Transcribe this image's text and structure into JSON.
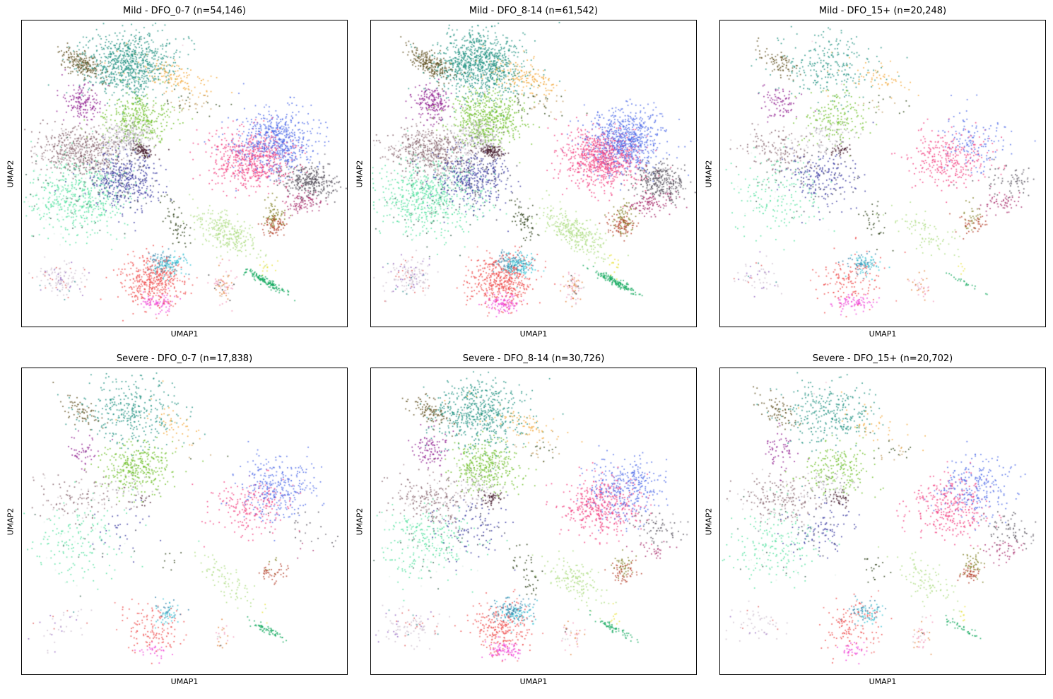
{
  "figure": {
    "background": "#ffffff",
    "rows": 2,
    "cols": 3
  },
  "chart_data": {
    "type": "scatter",
    "description": "Six UMAP embedding panels of single cells, split by disease severity (Mild, Severe) and days-from-onset bins (DFO_0-7, DFO_8-14, DFO_15+). Points are colored by cell cluster; no axis ticks are shown.",
    "axes": {
      "xlabel": "UMAP1",
      "ylabel": "UMAP2",
      "ticks": false,
      "grid": false
    },
    "points_per_dot": 8,
    "dot_size": 1.7,
    "dot_alpha": 0.85,
    "panels": [
      {
        "title": "Mild - DFO_0-7 (n=54,146)",
        "group": "Mild",
        "dfo": "DFO_0-7",
        "n": 54146,
        "seed": 11,
        "weight_multipliers": {
          "slate": 1.25,
          "silver": 1.25,
          "navy": 1.1,
          "rosybrown": 1.15,
          "yellow_green": 0.75
        }
      },
      {
        "title": "Mild - DFO_8-14 (n=61,542)",
        "group": "Mild",
        "dfo": "DFO_8-14",
        "n": 61542,
        "seed": 22,
        "weight_multipliers": {
          "yellow_green": 1.1,
          "blue": 1.1,
          "pink": 1.05,
          "teal": 1.05
        }
      },
      {
        "title": "Mild - DFO_15+ (n=20,248)",
        "group": "Mild",
        "dfo": "DFO_15+",
        "n": 20248,
        "seed": 33,
        "weight_multipliers": {
          "red": 0.8,
          "magenta": 2.0,
          "cyan": 1.6,
          "steel_teal": 1.5,
          "pink": 1.35,
          "blue": 0.55,
          "navy": 1.35,
          "slate": 0.65,
          "teal": 0.85,
          "spring_green": 0.85,
          "silver": 1.3,
          "rosybrown": 0.95,
          "mulberry": 1.5,
          "brick_red": 1.1,
          "light_green": 0.8,
          "green_streak": 0.5,
          "dark_green_trail": 1.8,
          "thistle": 1.2,
          "dark_maroon": 1.2,
          "purple": 1.1
        }
      },
      {
        "title": "Severe - DFO_0-7 (n=17,838)",
        "group": "Severe",
        "dfo": "DFO_0-7",
        "n": 17838,
        "seed": 44,
        "weight_multipliers": {
          "yellow_green": 1.9,
          "teal": 1.25,
          "blue": 1.5,
          "pink": 0.85,
          "rosybrown": 0.85,
          "slate": 0.2,
          "spring_green": 0.85,
          "navy": 0.25,
          "silver": 0.5,
          "dark_maroon": 0.25,
          "mulberry": 0.3,
          "olive_small": 0.3,
          "brick_red": 1.4,
          "magenta": 0.9,
          "cyan": 1.3,
          "steel_teal": 0.8,
          "green_streak": 1.3,
          "dark_green_trail": 0.4,
          "tan_specks": 0.5,
          "yellow_specks": 0.5,
          "thistle": 1.1,
          "red": 1.05,
          "purple": 0.9
        }
      },
      {
        "title": "Severe - DFO_8-14 (n=30,726)",
        "group": "Severe",
        "dfo": "DFO_8-14",
        "n": 30726,
        "seed": 55,
        "weight_multipliers": {
          "yellow_green": 1.5,
          "teal": 1.25,
          "pink": 1.25,
          "blue": 0.95,
          "steel_teal": 2.2,
          "cyan": 1.6,
          "magenta": 1.6,
          "red": 1.15,
          "slate": 0.45,
          "navy": 0.55,
          "silver": 0.8,
          "dark_green_trail": 1.6,
          "thistle": 1.4,
          "rosybrown": 0.9,
          "mulberry": 0.8,
          "spring_green": 0.95,
          "dark_maroon": 0.8
        }
      },
      {
        "title": "Severe - DFO_15+ (n=20,702)",
        "group": "Severe",
        "dfo": "DFO_15+",
        "n": 20702,
        "seed": 66,
        "weight_multipliers": {
          "pink": 1.35,
          "blue": 1.05,
          "yellow_green": 1.25,
          "teal": 1.1,
          "navy": 0.85,
          "slate": 0.7,
          "olive_small": 1.6,
          "green_streak": 0.9,
          "steel_teal": 1.8,
          "cyan": 1.3,
          "magenta": 1.2,
          "brick_red": 1.2,
          "peach": 1.3,
          "thistle": 1.1
        }
      }
    ],
    "clusters": [
      {
        "id": "olive_brown",
        "color": "#5f4f1e",
        "cx": 0.18,
        "cy": 0.138,
        "sx": 0.04,
        "sy": 0.018,
        "rot": 35,
        "weight": 0.032
      },
      {
        "id": "teal",
        "color": "#1f9080",
        "cx": 0.332,
        "cy": 0.142,
        "sx": 0.07,
        "sy": 0.055,
        "rot": 0,
        "weight": 0.125,
        "mix": [
          {
            "color": "#f3a83b",
            "frac": 0.012
          },
          {
            "color": "#efc3d2",
            "frac": 0.01
          }
        ]
      },
      {
        "id": "orange",
        "color": "#f3a83b",
        "cx": 0.476,
        "cy": 0.187,
        "sx": 0.055,
        "sy": 0.022,
        "rot": 20,
        "weight": 0.02
      },
      {
        "id": "tan_specks",
        "color": "#c09a5e",
        "cx": 0.52,
        "cy": 0.271,
        "sx": 0.045,
        "sy": 0.02,
        "rot": 10,
        "weight": 0.007,
        "mix": [
          {
            "color": "#2c4414",
            "frac": 0.5
          }
        ]
      },
      {
        "id": "purple",
        "color": "#8d1a8d",
        "cx": 0.184,
        "cy": 0.264,
        "sx": 0.028,
        "sy": 0.03,
        "rot": 0,
        "weight": 0.026
      },
      {
        "id": "yellow_green",
        "color": "#6cbe26",
        "cx": 0.354,
        "cy": 0.321,
        "sx": 0.052,
        "sy": 0.042,
        "rot": 0,
        "weight": 0.072
      },
      {
        "id": "silver",
        "color": "#b9b2bd",
        "cx": 0.325,
        "cy": 0.382,
        "sx": 0.038,
        "sy": 0.03,
        "rot": 0,
        "weight": 0.028,
        "mix": [
          {
            "color": "#6a6470",
            "frac": 0.1
          }
        ]
      },
      {
        "id": "rosybrown",
        "color": "#7e5a64",
        "cx": 0.18,
        "cy": 0.424,
        "sx": 0.065,
        "sy": 0.038,
        "rot": 5,
        "weight": 0.07,
        "mix": [
          {
            "color": "#a88b92",
            "frac": 0.25
          },
          {
            "color": "#c9c2c6",
            "frac": 0.1
          }
        ]
      },
      {
        "id": "dark_maroon",
        "color": "#3c1022",
        "cx": 0.368,
        "cy": 0.424,
        "sx": 0.02,
        "sy": 0.012,
        "rot": 15,
        "weight": 0.016
      },
      {
        "id": "spring_green",
        "color": "#50e09e",
        "cx": 0.17,
        "cy": 0.57,
        "sx": 0.078,
        "sy": 0.062,
        "rot": 0,
        "weight": 0.1,
        "mix": [
          {
            "color": "#dfeee6",
            "frac": 0.12
          },
          {
            "color": "#2e5a46",
            "frac": 0.06
          }
        ]
      },
      {
        "id": "navy",
        "color": "#32329e",
        "cx": 0.31,
        "cy": 0.516,
        "sx": 0.058,
        "sy": 0.048,
        "rot": 0,
        "weight": 0.062,
        "mix": [
          {
            "color": "#3c3c58",
            "frac": 0.15
          }
        ]
      },
      {
        "id": "dark_green_trail",
        "color": "#24380f",
        "cx": 0.473,
        "cy": 0.661,
        "sx": 0.018,
        "sy": 0.04,
        "rot": -20,
        "weight": 0.008
      },
      {
        "id": "light_green",
        "color": "#abdc80",
        "cx": 0.628,
        "cy": 0.692,
        "sx": 0.055,
        "sy": 0.026,
        "rot": 40,
        "weight": 0.04
      },
      {
        "id": "green_streak",
        "color": "#0fa85c",
        "cx": 0.75,
        "cy": 0.852,
        "sx": 0.038,
        "sy": 0.006,
        "rot": 30,
        "weight": 0.02
      },
      {
        "id": "yellow_specks",
        "color": "#e8e23a",
        "cx": 0.747,
        "cy": 0.806,
        "sx": 0.01,
        "sy": 0.018,
        "rot": 0,
        "weight": 0.0025
      },
      {
        "id": "blue",
        "color": "#4b68e8",
        "cx": 0.779,
        "cy": 0.39,
        "sx": 0.058,
        "sy": 0.05,
        "rot": 0,
        "weight": 0.098
      },
      {
        "id": "pink",
        "color": "#f23f80",
        "cx": 0.703,
        "cy": 0.451,
        "sx": 0.06,
        "sy": 0.048,
        "rot": 0,
        "weight": 0.098
      },
      {
        "id": "slate",
        "color": "#4c4752",
        "cx": 0.887,
        "cy": 0.524,
        "sx": 0.045,
        "sy": 0.027,
        "rot": 15,
        "weight": 0.042,
        "mix": [
          {
            "color": "#7a7580",
            "frac": 0.2
          }
        ]
      },
      {
        "id": "mulberry",
        "color": "#a62868",
        "cx": 0.862,
        "cy": 0.596,
        "sx": 0.032,
        "sy": 0.018,
        "rot": -10,
        "weight": 0.015
      },
      {
        "id": "olive_small",
        "color": "#7e7e20",
        "cx": 0.776,
        "cy": 0.641,
        "sx": 0.016,
        "sy": 0.024,
        "rot": 0,
        "weight": 0.011
      },
      {
        "id": "brick_red",
        "color": "#b4402a",
        "cx": 0.77,
        "cy": 0.667,
        "sx": 0.022,
        "sy": 0.016,
        "rot": 0,
        "weight": 0.013
      },
      {
        "id": "thistle",
        "color": "#cbbccd",
        "cx": 0.115,
        "cy": 0.837,
        "sx": 0.04,
        "sy": 0.032,
        "rot": 0,
        "weight": 0.02,
        "mix": [
          {
            "color": "#8f5fc0",
            "frac": 0.15
          },
          {
            "color": "#e05858",
            "frac": 0.1
          },
          {
            "color": "#2e8f8f",
            "frac": 0.05
          }
        ]
      },
      {
        "id": "red",
        "color": "#ee4747",
        "cx": 0.4,
        "cy": 0.845,
        "sx": 0.047,
        "sy": 0.042,
        "rot": 0,
        "weight": 0.062,
        "mix": [
          {
            "color": "#f07070",
            "frac": 0.1
          }
        ]
      },
      {
        "id": "cyan",
        "color": "#35c3d5",
        "cx": 0.451,
        "cy": 0.799,
        "sx": 0.026,
        "sy": 0.02,
        "rot": 0,
        "weight": 0.016
      },
      {
        "id": "steel_teal",
        "color": "#2e7fa8",
        "cx": 0.433,
        "cy": 0.787,
        "sx": 0.028,
        "sy": 0.018,
        "rot": 0,
        "weight": 0.011
      },
      {
        "id": "magenta",
        "color": "#ee3ed6",
        "cx": 0.408,
        "cy": 0.921,
        "sx": 0.026,
        "sy": 0.014,
        "rot": 0,
        "weight": 0.013
      },
      {
        "id": "peach",
        "color": "#f298ba",
        "cx": 0.617,
        "cy": 0.872,
        "sx": 0.017,
        "sy": 0.026,
        "rot": 0,
        "weight": 0.011,
        "mix": [
          {
            "color": "#e0813a",
            "frac": 0.35
          },
          {
            "color": "#c8c8c8",
            "frac": 0.1
          },
          {
            "color": "#333333",
            "frac": 0.05
          }
        ]
      }
    ]
  }
}
